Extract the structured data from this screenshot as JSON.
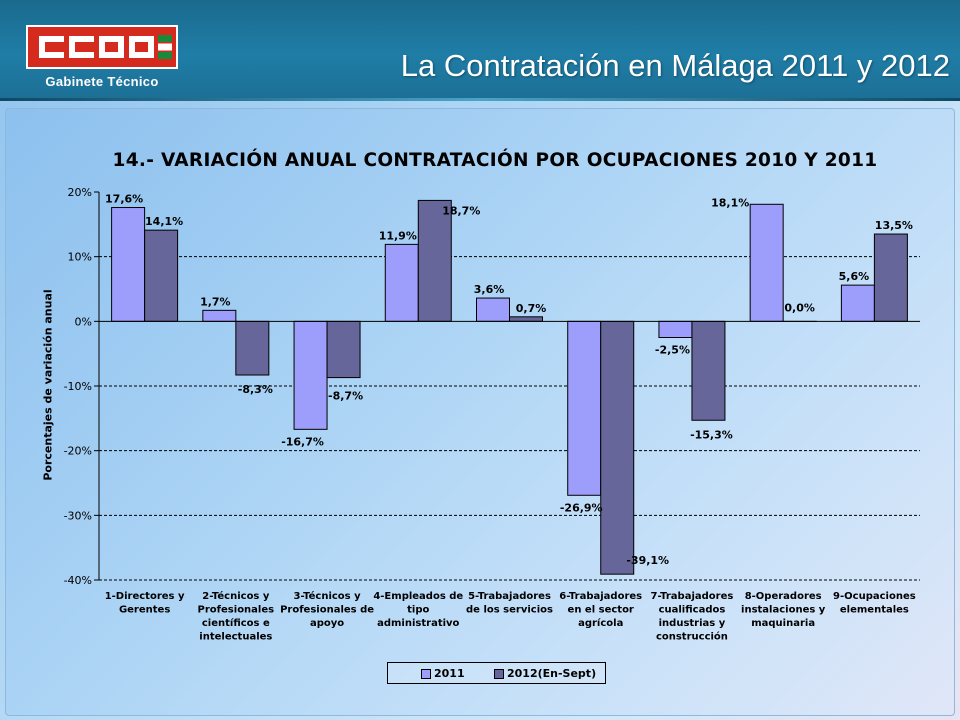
{
  "header": {
    "logo_text": "Gabinete   Técnico",
    "title": "La Contratación en Málaga 2011 y 2012"
  },
  "colors": {
    "series_2011": "#9d9dfb",
    "series_2012": "#66669a"
  },
  "chart_data": {
    "type": "bar",
    "title": "14.- VARIACIÓN ANUAL CONTRATACIÓN POR OCUPACIONES 2010 Y 2011",
    "xlabel": "",
    "ylabel": "Porcentajes de variación anual",
    "ylim": [
      -40,
      20
    ],
    "yticks": [
      20,
      10,
      0,
      -10,
      -20,
      -30,
      -40
    ],
    "ytick_labels": [
      "20%",
      "10%",
      "0%",
      "-10%",
      "-20%",
      "-30%",
      "-40%"
    ],
    "grid": "dashed horizontal",
    "legend_position": "bottom",
    "categories": [
      [
        "1-Directores y",
        "Gerentes"
      ],
      [
        "2-Técnicos y",
        "Profesionales",
        "científicos e",
        "intelectuales"
      ],
      [
        "3-Técnicos y",
        "Profesionales de",
        "apoyo"
      ],
      [
        "4-Empleados de",
        "tipo",
        "administrativo"
      ],
      [
        "5-Trabajadores",
        "de los servicios"
      ],
      [
        "6-Trabajadores",
        "en el sector",
        "agrícola"
      ],
      [
        "7-Trabajadores",
        "cualificados",
        "industrias y",
        "construcción"
      ],
      [
        "8-Operadores",
        "instalaciones y",
        "maquinaria"
      ],
      [
        "9-Ocupaciones",
        "elementales"
      ]
    ],
    "series": [
      {
        "name": "2011",
        "values": [
          17.6,
          1.7,
          -16.7,
          11.9,
          3.6,
          -26.9,
          -2.5,
          18.1,
          5.6
        ],
        "labels": [
          "17,6%",
          "1,7%",
          "-16,7%",
          "11,9%",
          "3,6%",
          "-26,9%",
          "-2,5%",
          "18,1%",
          "5,6%"
        ]
      },
      {
        "name": "2012(En-Sept)",
        "values": [
          14.1,
          -8.3,
          -8.7,
          18.7,
          0.7,
          -39.1,
          -15.3,
          0.0,
          13.5
        ],
        "labels": [
          "14,1%",
          "-8,3%",
          "-8,7%",
          "18,7%",
          "0,7%",
          "-39,1%",
          "-15,3%",
          "0,0%",
          "13,5%"
        ]
      }
    ]
  }
}
